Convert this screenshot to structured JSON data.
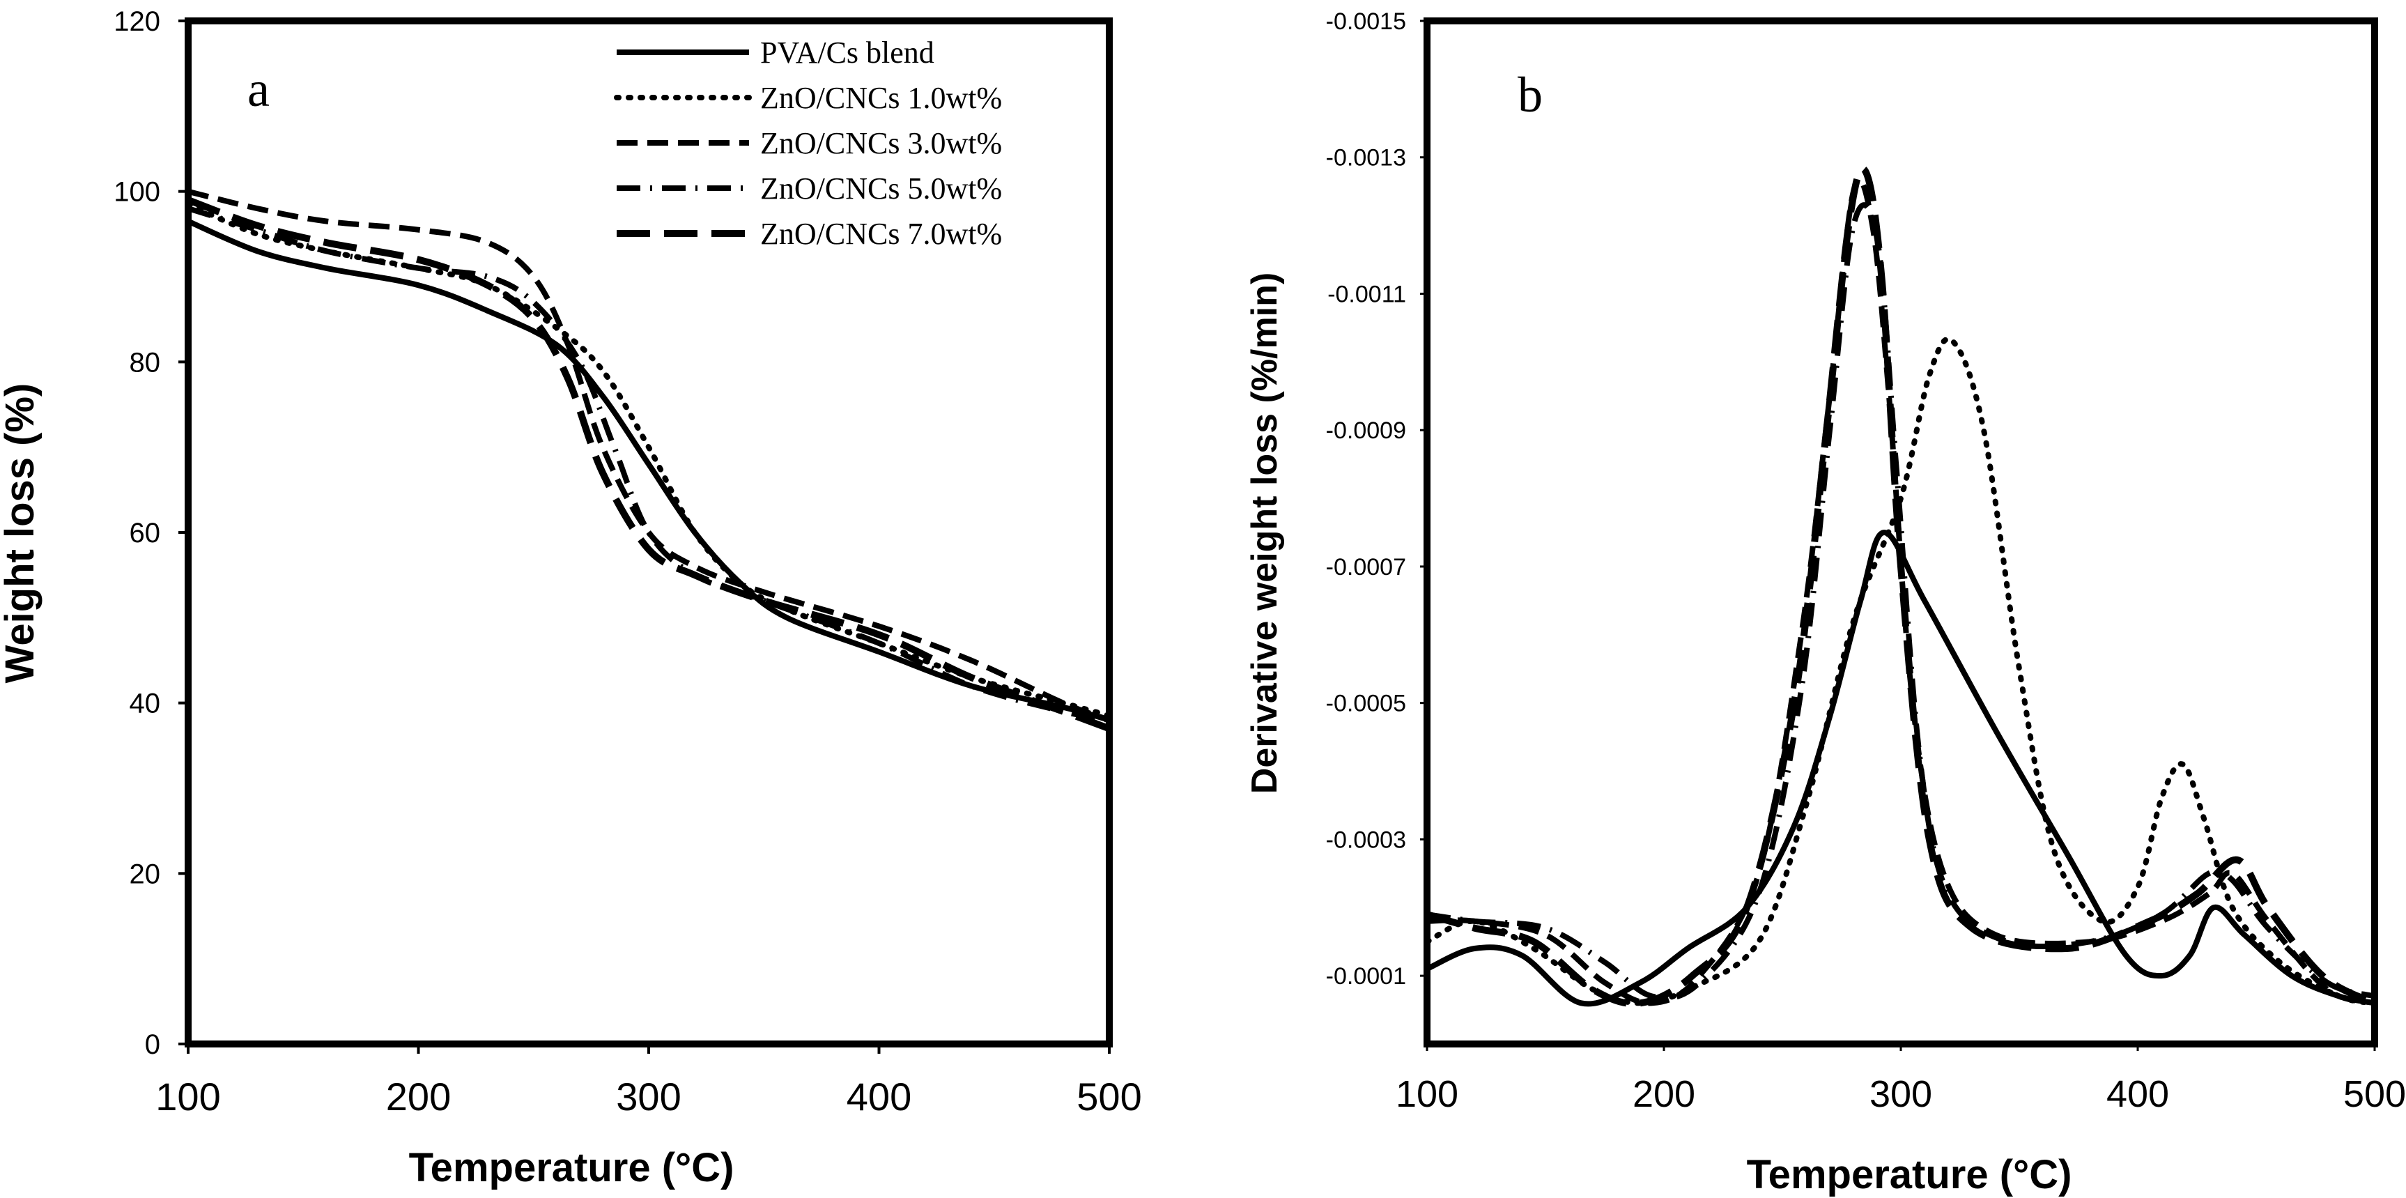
{
  "chart_data": [
    {
      "panel": "a",
      "type": "line",
      "xlabel": "Temperature (°C)",
      "ylabel": "Weight loss (%)",
      "xlim": [
        100,
        500
      ],
      "ylim": [
        0,
        120
      ],
      "xticks": [
        "100",
        "200",
        "300",
        "400",
        "500"
      ],
      "yticks": [
        "0",
        "20",
        "40",
        "60",
        "80",
        "100",
        "120"
      ],
      "legend_position": "top-right",
      "series": [
        {
          "name": "PVA/Cs blend",
          "style": "solid",
          "x": [
            100,
            130,
            160,
            200,
            230,
            260,
            280,
            300,
            320,
            340,
            360,
            400,
            440,
            480,
            500
          ],
          "y": [
            96.5,
            93,
            91,
            89,
            86,
            82,
            76,
            68,
            60,
            54,
            50,
            46,
            42,
            39.5,
            38
          ]
        },
        {
          "name": "ZnO/CNCs 1.0wt%",
          "style": "dotted",
          "x": [
            100,
            130,
            160,
            200,
            230,
            260,
            280,
            300,
            320,
            340,
            360,
            400,
            440,
            480,
            500
          ],
          "y": [
            98.5,
            95,
            93,
            91,
            89,
            84,
            79,
            70,
            60,
            54,
            51,
            47,
            43,
            40,
            38.5
          ]
        },
        {
          "name": "ZnO/CNCs 3.0wt%",
          "style": "dashed",
          "x": [
            100,
            130,
            160,
            200,
            230,
            250,
            265,
            280,
            300,
            320,
            350,
            400,
            440,
            480,
            500
          ],
          "y": [
            100,
            98,
            96.5,
            95.5,
            94,
            90,
            82,
            70,
            60,
            56,
            53,
            49,
            45,
            40,
            38
          ]
        },
        {
          "name": "ZnO/CNCs 5.0wt%",
          "style": "dashdot",
          "x": [
            100,
            130,
            160,
            200,
            230,
            250,
            270,
            285,
            300,
            320,
            350,
            400,
            440,
            480,
            500
          ],
          "y": [
            98,
            95.5,
            93,
            91,
            90,
            87,
            80,
            70,
            60,
            55,
            52,
            47,
            42,
            39,
            38
          ]
        },
        {
          "name": "ZnO/CNCs 7.0wt%",
          "style": "longdash",
          "x": [
            100,
            130,
            160,
            200,
            230,
            250,
            265,
            280,
            300,
            320,
            350,
            400,
            440,
            480,
            500
          ],
          "y": [
            99,
            96,
            94,
            92,
            89,
            85,
            78,
            67,
            58,
            55,
            52,
            48,
            43,
            39,
            37
          ]
        }
      ]
    },
    {
      "panel": "b",
      "type": "line",
      "xlabel": "Temperature (°C)",
      "ylabel": "Derivative weight loss (%/min)",
      "xlim": [
        100,
        500
      ],
      "ylim": [
        -0.0015,
        0
      ],
      "y_inverted": true,
      "xticks": [
        "100",
        "200",
        "300",
        "400",
        "500"
      ],
      "yticks": [
        "-0.0015",
        "-0.0013",
        "-0.0011",
        "-0.0009",
        "-0.0007",
        "-0.0005",
        "-0.0003",
        "-0.0001"
      ],
      "series": [
        {
          "name": "PVA/Cs blend",
          "style": "solid",
          "x": [
            100,
            120,
            140,
            165,
            190,
            210,
            235,
            255,
            270,
            283,
            293,
            310,
            340,
            370,
            395,
            410,
            422,
            432,
            445,
            465,
            485,
            500
          ],
          "y": [
            -0.00011,
            -0.00014,
            -0.00013,
            -6e-05,
            -9e-05,
            -0.00014,
            -0.0002,
            -0.00032,
            -0.00048,
            -0.00065,
            -0.00075,
            -0.00065,
            -0.00046,
            -0.00028,
            -0.00013,
            -0.0001,
            -0.00013,
            -0.0002,
            -0.00016,
            -0.0001,
            -7e-05,
            -6e-05
          ]
        },
        {
          "name": "ZnO/CNCs 1.0wt%",
          "style": "dotted",
          "x": [
            100,
            120,
            145,
            170,
            190,
            210,
            240,
            260,
            280,
            300,
            312,
            322,
            335,
            350,
            365,
            385,
            400,
            410,
            419,
            428,
            440,
            460,
            485,
            500
          ],
          "y": [
            -0.00015,
            -0.00018,
            -0.00014,
            -8e-05,
            -6e-05,
            -8e-05,
            -0.00015,
            -0.00035,
            -0.00062,
            -0.0008,
            -0.00098,
            -0.00103,
            -0.0009,
            -0.00055,
            -0.00028,
            -0.00018,
            -0.00023,
            -0.00036,
            -0.00041,
            -0.00033,
            -0.0002,
            -0.00012,
            -7e-05,
            -6e-05
          ]
        },
        {
          "name": "ZnO/CNCs 3.0wt%",
          "style": "dashed",
          "x": [
            100,
            120,
            150,
            175,
            195,
            215,
            240,
            258,
            270,
            280,
            288,
            295,
            305,
            318,
            340,
            380,
            410,
            430,
            440,
            455,
            480,
            500
          ],
          "y": [
            -0.00018,
            -0.00018,
            -0.00016,
            -9e-05,
            -6e-05,
            -0.0001,
            -0.00025,
            -0.0006,
            -0.00095,
            -0.00125,
            -0.0012,
            -0.00095,
            -0.0005,
            -0.00025,
            -0.00016,
            -0.00015,
            -0.00018,
            -0.00022,
            -0.00025,
            -0.00018,
            -8e-05,
            -6e-05
          ]
        },
        {
          "name": "ZnO/CNCs 5.0wt%",
          "style": "dashdot",
          "x": [
            100,
            120,
            150,
            175,
            195,
            215,
            240,
            258,
            270,
            280,
            290,
            298,
            308,
            320,
            345,
            380,
            410,
            430,
            440,
            455,
            480,
            500
          ],
          "y": [
            -0.00019,
            -0.00018,
            -0.00017,
            -0.00012,
            -7e-05,
            -9e-05,
            -0.00022,
            -0.00052,
            -0.0009,
            -0.0012,
            -0.00118,
            -0.00085,
            -0.00042,
            -0.00022,
            -0.00015,
            -0.00015,
            -0.00019,
            -0.00025,
            -0.00024,
            -0.00017,
            -9e-05,
            -7e-05
          ]
        },
        {
          "name": "ZnO/CNCs 7.0wt%",
          "style": "longdash",
          "x": [
            100,
            120,
            145,
            170,
            190,
            212,
            235,
            255,
            268,
            278,
            285,
            292,
            300,
            312,
            330,
            370,
            405,
            425,
            442,
            455,
            478,
            500
          ],
          "y": [
            -0.00019,
            -0.00017,
            -0.00015,
            -8e-05,
            -6e-05,
            -0.0001,
            -0.0002,
            -0.0005,
            -0.00088,
            -0.0012,
            -0.00128,
            -0.00112,
            -0.0007,
            -0.0003,
            -0.00017,
            -0.00014,
            -0.00018,
            -0.00022,
            -0.00027,
            -0.0002,
            -0.0001,
            -6e-05
          ]
        }
      ]
    }
  ],
  "panel_labels": {
    "a": "a",
    "b": "b"
  }
}
